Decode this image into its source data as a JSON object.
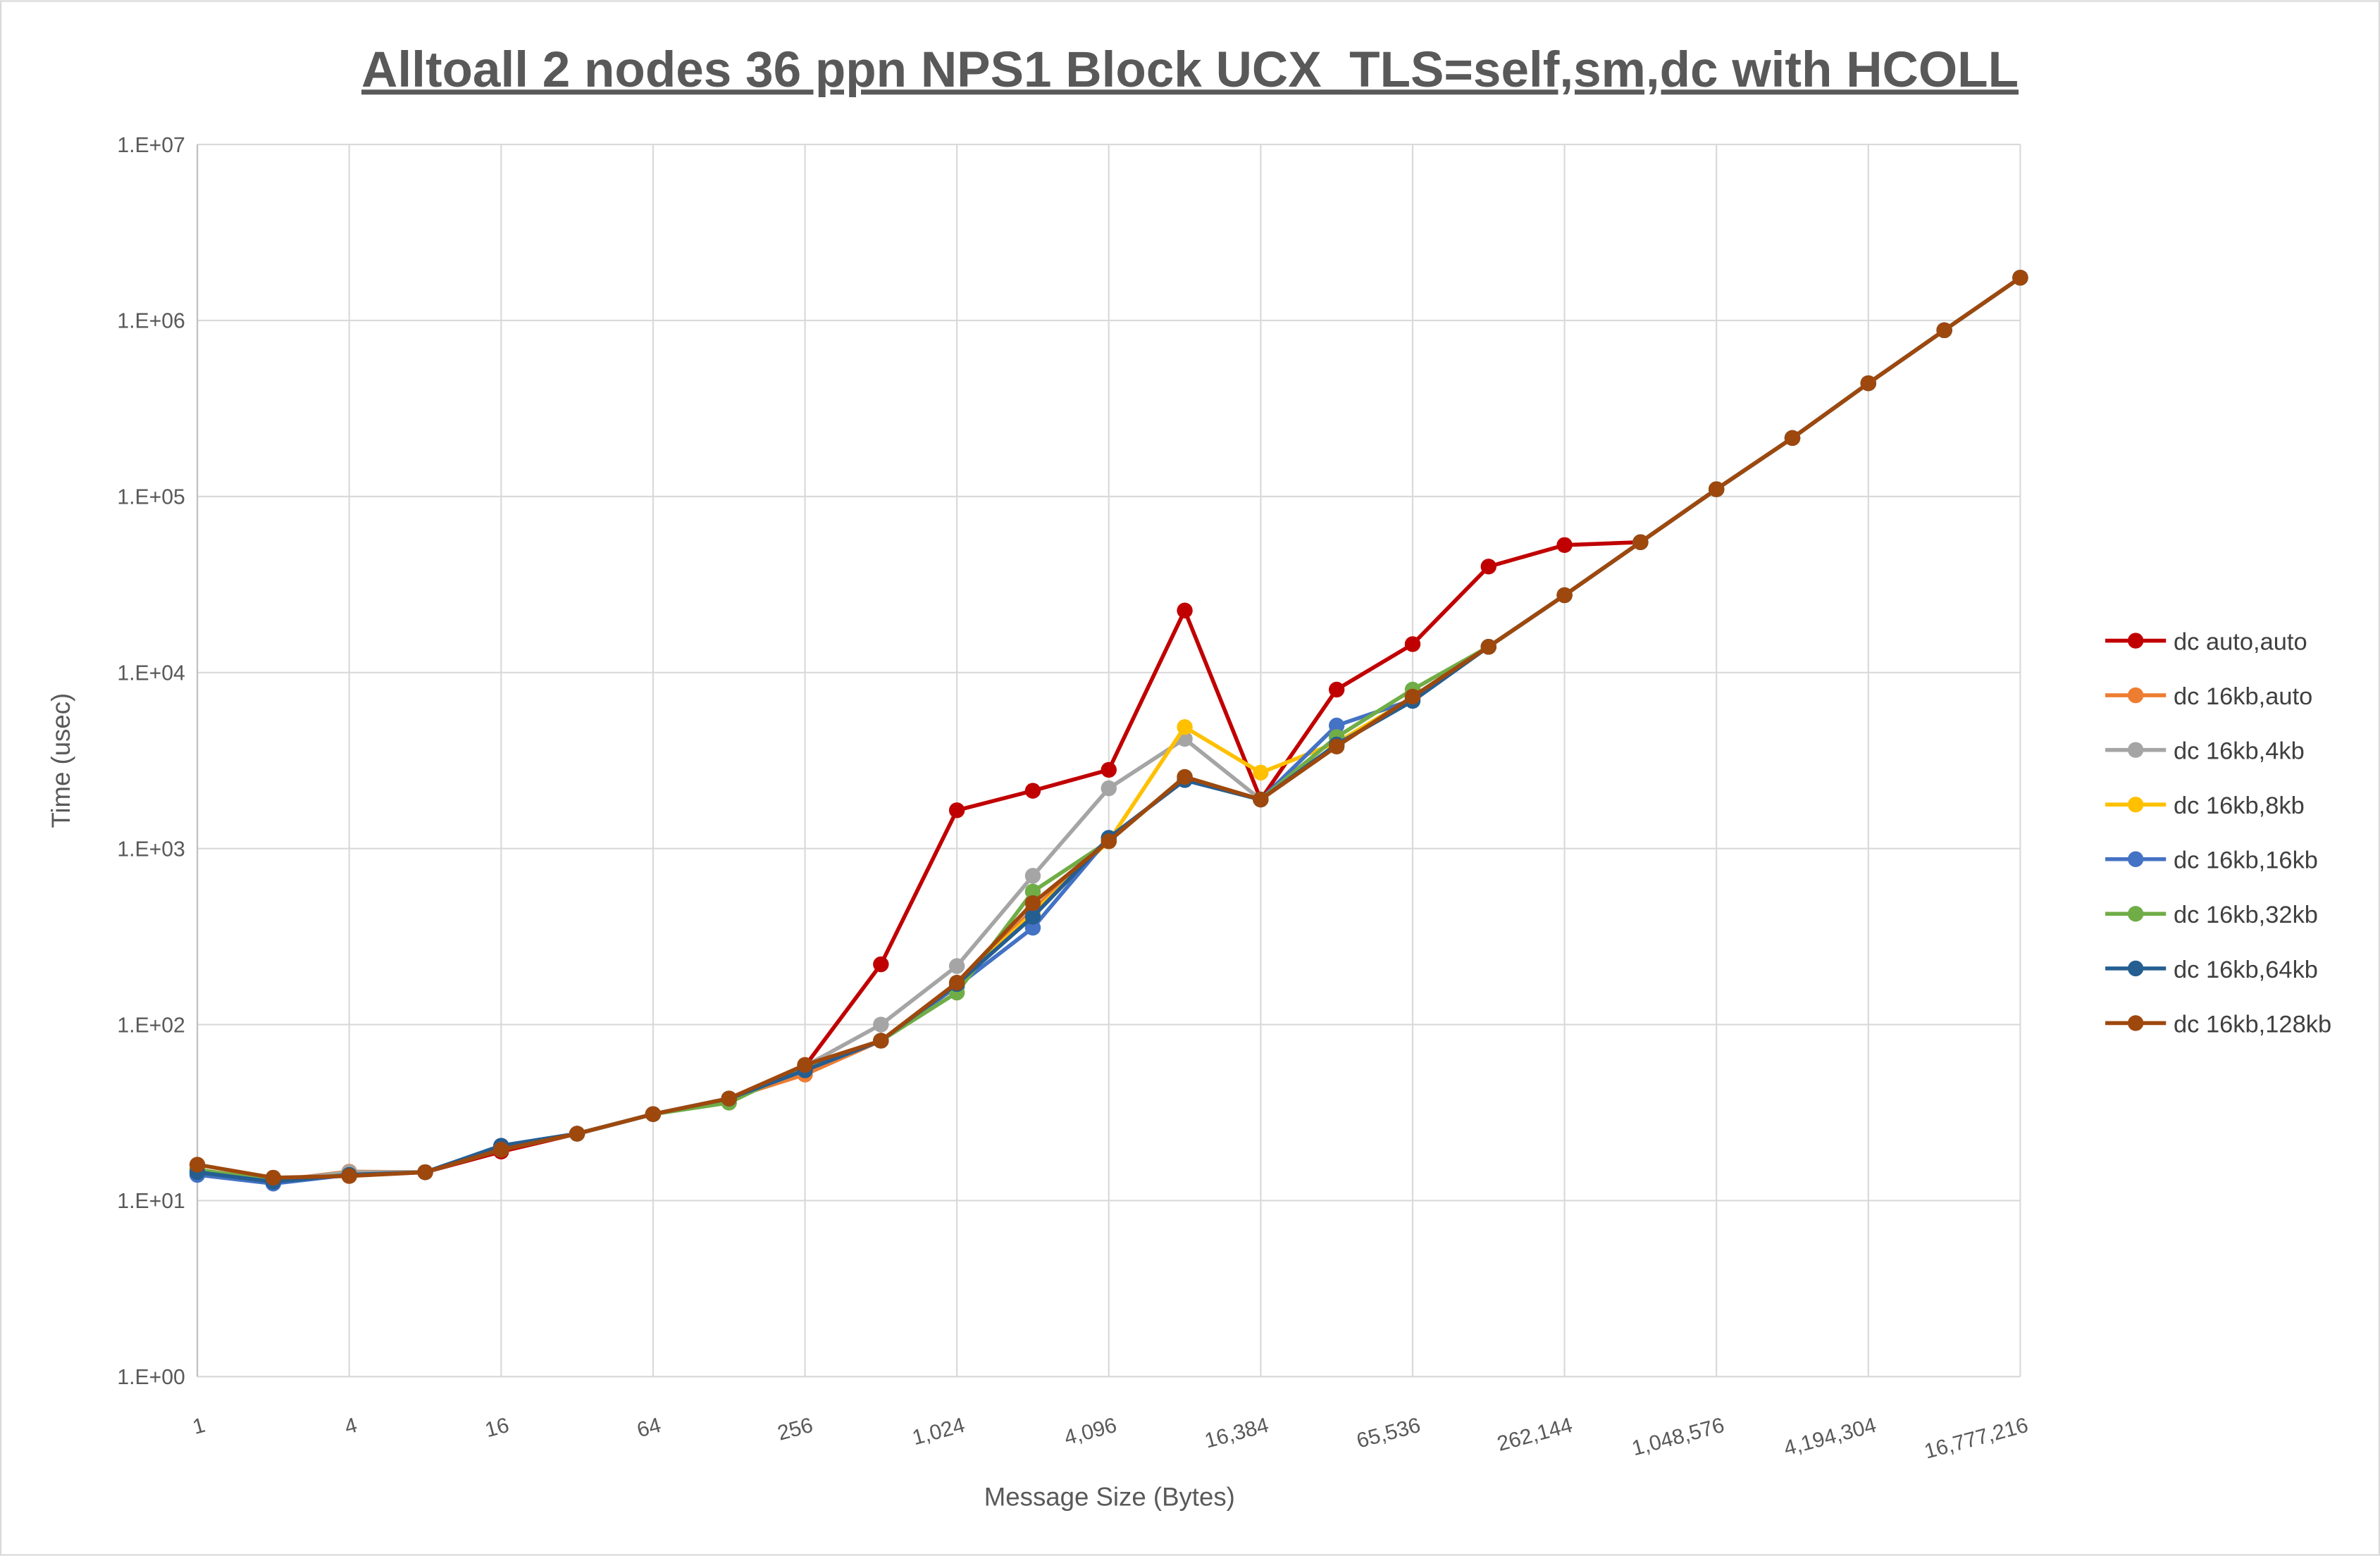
{
  "chart_data": {
    "type": "line",
    "title": "Alltoall 2 nodes 36 ppn NPS1 Block UCX_TLS=self,sm,dc with HCOLL",
    "xlabel": "Message Size (Bytes)",
    "ylabel": "Time (usec)",
    "x_scale": "log2",
    "y_scale": "log10",
    "xlim": [
      1,
      16777216
    ],
    "ylim": [
      1,
      10000000
    ],
    "grid": true,
    "legend_position": "right",
    "x_tick_labels": [
      "1",
      "4",
      "16",
      "64",
      "256",
      "1,024",
      "4,096",
      "16,384",
      "65,536",
      "262,144",
      "1,048,576",
      "4,194,304",
      "16,777,216"
    ],
    "y_tick_labels": [
      "1.E+00",
      "1.E+01",
      "1.E+02",
      "1.E+03",
      "1.E+04",
      "1.E+05",
      "1.E+06",
      "1.E+07"
    ],
    "x": [
      1,
      2,
      4,
      8,
      16,
      32,
      64,
      128,
      256,
      512,
      1024,
      2048,
      4096,
      8192,
      16384,
      32768,
      65536,
      131072,
      262144,
      524288,
      1048576,
      2097152,
      4194304,
      8388608,
      16777216
    ],
    "series": [
      {
        "name": "dc auto,auto",
        "color": "#C00000",
        "values": [
          15,
          13,
          14,
          14.5,
          19,
          24,
          31,
          38,
          58,
          220,
          1650,
          2130,
          2800,
          22500,
          1900,
          8000,
          14500,
          40000,
          53000,
          55000,
          110000,
          215000,
          440000,
          880000,
          1750000
        ]
      },
      {
        "name": "dc 16kb,auto",
        "color": "#ED7D31",
        "values": [
          15,
          13,
          14.6,
          14.5,
          19.5,
          24,
          31,
          38,
          52,
          81,
          165,
          450,
          1100,
          2550,
          1900,
          3900,
          7200,
          14000,
          27500,
          55000,
          110000,
          215000,
          440000,
          880000,
          1750000
        ]
      },
      {
        "name": "dc 16kb,4kb",
        "color": "#A5A5A5",
        "values": [
          15,
          13,
          14.5,
          14.5,
          19.5,
          24,
          31,
          38,
          58,
          100,
          215,
          700,
          2200,
          4200,
          1900,
          3900,
          7200,
          14000,
          27500,
          55000,
          110000,
          215000,
          440000,
          880000,
          1750000
        ]
      },
      {
        "name": "dc 16kb,8kb",
        "color": "#FFC000",
        "values": [
          15,
          13,
          14,
          14.5,
          19.5,
          24,
          31,
          38,
          58,
          81,
          170,
          430,
          1100,
          4900,
          2700,
          4000,
          7200,
          14000,
          27500,
          55000,
          110000,
          215000,
          440000,
          880000,
          1750000
        ]
      },
      {
        "name": "dc 16kb,16kb",
        "color": "#4472C4",
        "values": [
          14,
          12.5,
          14,
          14.5,
          20.5,
          24,
          31,
          38,
          55,
          81,
          165,
          355,
          1150,
          2450,
          1900,
          5000,
          7000,
          14000,
          27500,
          55000,
          110000,
          215000,
          440000,
          880000,
          1750000
        ]
      },
      {
        "name": "dc 16kb,32kb",
        "color": "#70AD47",
        "values": [
          15,
          13,
          14,
          14.5,
          19.5,
          24,
          31,
          36,
          58,
          81,
          152,
          570,
          1100,
          2550,
          1900,
          4300,
          8000,
          14000,
          27500,
          55000,
          110000,
          215000,
          440000,
          880000,
          1750000
        ]
      },
      {
        "name": "dc 16kb,64kb",
        "color": "#255E91",
        "values": [
          14.5,
          12.8,
          14,
          14.5,
          20.5,
          24,
          31,
          38,
          55,
          81,
          170,
          410,
          1150,
          2450,
          1900,
          3900,
          6900,
          14000,
          27500,
          55000,
          110000,
          215000,
          440000,
          880000,
          1750000
        ]
      },
      {
        "name": "dc 16kb,128kb",
        "color": "#9E480E",
        "values": [
          16,
          13.5,
          13.8,
          14.5,
          19.5,
          24,
          31,
          38,
          59,
          81,
          173,
          490,
          1100,
          2550,
          1900,
          3800,
          7300,
          14000,
          27500,
          55000,
          110000,
          215000,
          440000,
          880000,
          1750000
        ]
      }
    ]
  }
}
